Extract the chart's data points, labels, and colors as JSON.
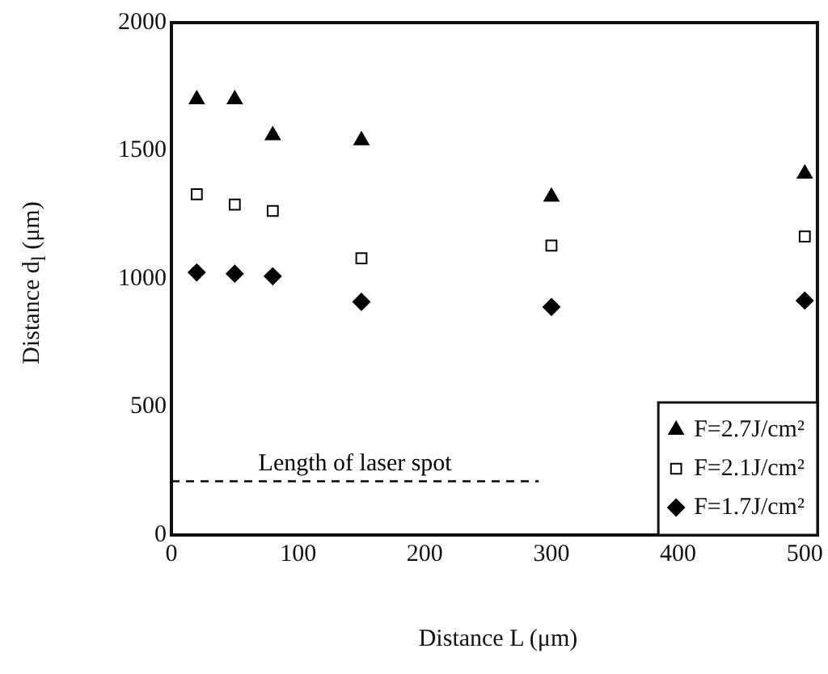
{
  "chart_data": {
    "type": "scatter",
    "xlabel": "Distance L (μm)",
    "ylabel": "Distance d$_{l}$ (μm)",
    "xlim": [
      0,
      510
    ],
    "xticks": [
      0,
      100,
      200,
      300,
      400,
      500
    ],
    "ylim": [
      0,
      2000
    ],
    "yticks": [
      0,
      500,
      1000,
      1500,
      2000
    ],
    "grid": false,
    "legend": "bottom right",
    "series": [
      {
        "name": "F=2.7J/cm²",
        "color": "#000000",
        "marker": "triangle",
        "x": [
          20,
          50,
          80,
          150,
          300,
          500
        ],
        "values": [
          1700,
          1700,
          1560,
          1540,
          1320,
          1410
        ]
      },
      {
        "name": "F=2.1J/cm²",
        "color": "#000000",
        "marker": "square",
        "x": [
          20,
          50,
          80,
          150,
          300,
          500
        ],
        "values": [
          1330,
          1290,
          1265,
          1080,
          1130,
          1165
        ]
      },
      {
        "name": "F=1.7J/cm²",
        "color": "#000000",
        "marker": "diamond",
        "x": [
          20,
          50,
          80,
          150,
          300,
          500
        ],
        "values": [
          1025,
          1020,
          1010,
          910,
          890,
          915
        ]
      },
      {
        "name": "Length of laser spot",
        "type": "line",
        "color": "#000000",
        "line_style": "dashed",
        "marker": "none",
        "x": [
          0,
          290
        ],
        "values": [
          210,
          210
        ]
      }
    ]
  }
}
